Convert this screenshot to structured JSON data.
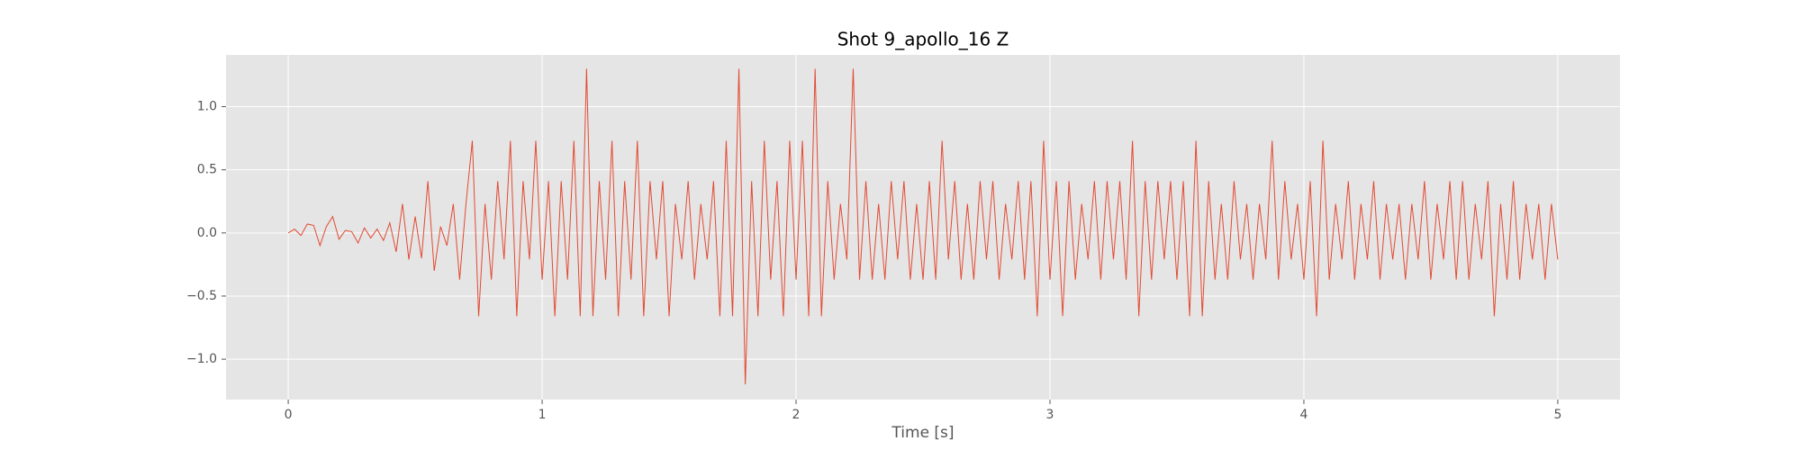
{
  "chart_data": {
    "type": "line",
    "title": "Shot 9_apollo_16 Z",
    "xlabel": "Time [s]",
    "x": [
      0,
      0.025,
      0.05,
      0.075,
      0.1,
      0.125,
      0.15,
      0.175,
      0.2,
      0.225,
      0.25,
      0.275,
      0.3,
      0.325,
      0.35,
      0.375,
      0.4,
      0.425,
      0.45,
      0.475,
      0.5,
      0.525,
      0.55,
      0.575,
      0.6,
      0.625,
      0.65,
      0.675,
      0.7,
      0.725,
      0.75,
      0.775,
      0.8,
      0.825,
      0.85,
      0.875,
      0.9,
      0.925,
      0.95,
      0.975,
      1,
      1.025,
      1.05,
      1.075,
      1.1,
      1.125,
      1.15,
      1.175,
      1.2,
      1.225,
      1.25,
      1.275,
      1.3,
      1.325,
      1.35,
      1.375,
      1.4,
      1.425,
      1.45,
      1.475,
      1.5,
      1.525,
      1.55,
      1.575,
      1.6,
      1.625,
      1.65,
      1.675,
      1.7,
      1.725,
      1.75,
      1.775,
      1.8,
      1.825,
      1.85,
      1.875,
      1.9,
      1.925,
      1.95,
      1.975,
      2,
      2.025,
      2.05,
      2.075,
      2.1,
      2.125,
      2.15,
      2.175,
      2.2,
      2.225,
      2.25,
      2.275,
      2.3,
      2.325,
      2.35,
      2.375,
      2.4,
      2.425,
      2.45,
      2.475,
      2.5,
      2.525,
      2.55,
      2.575,
      2.6,
      2.625,
      2.65,
      2.675,
      2.7,
      2.725,
      2.75,
      2.775,
      2.8,
      2.825,
      2.85,
      2.875,
      2.9,
      2.925,
      2.95,
      2.975,
      3,
      3.025,
      3.05,
      3.075,
      3.1,
      3.125,
      3.15,
      3.175,
      3.2,
      3.225,
      3.25,
      3.275,
      3.3,
      3.325,
      3.35,
      3.375,
      3.4,
      3.425,
      3.45,
      3.475,
      3.5,
      3.525,
      3.55,
      3.575,
      3.6,
      3.625,
      3.65,
      3.675,
      3.7,
      3.725,
      3.75,
      3.775,
      3.8,
      3.825,
      3.85,
      3.875,
      3.9,
      3.925,
      3.95,
      3.975,
      4,
      4.025,
      4.05,
      4.075,
      4.1,
      4.125,
      4.15,
      4.175,
      4.2,
      4.225,
      4.25,
      4.275,
      4.3,
      4.325,
      4.35,
      4.375,
      4.4,
      4.425,
      4.45,
      4.475,
      4.5,
      4.525,
      4.55,
      4.575,
      4.6,
      4.625,
      4.65,
      4.675,
      4.7,
      4.725,
      4.75,
      4.775,
      4.8,
      4.825,
      4.85,
      4.875,
      4.9,
      4.925,
      4.95,
      4.975,
      5
    ],
    "series": [
      {
        "color": "#E24A33",
        "values": [
          0,
          0.03,
          -0.02,
          0.07,
          0.06,
          -0.1,
          0.05,
          0.13,
          -0.05,
          0.02,
          0.01,
          -0.08,
          0.04,
          -0.04,
          0.03,
          -0.06,
          0.08,
          -0.15,
          0.23,
          -0.21,
          0.13,
          -0.2,
          0.41,
          -0.3,
          0.05,
          -0.1,
          0.23,
          -0.37,
          0.23,
          0.73,
          -0.66,
          0.23,
          -0.37,
          0.41,
          -0.21,
          0.73,
          -0.66,
          0.41,
          -0.21,
          0.73,
          -0.37,
          0.41,
          -0.66,
          0.41,
          -0.37,
          0.73,
          -0.66,
          1.3,
          -0.66,
          0.41,
          -0.37,
          0.73,
          -0.66,
          0.41,
          -0.37,
          0.73,
          -0.66,
          0.41,
          -0.21,
          0.41,
          -0.66,
          0.23,
          -0.21,
          0.41,
          -0.37,
          0.23,
          -0.21,
          0.41,
          -0.66,
          0.73,
          -0.66,
          1.3,
          -1.2,
          0.41,
          -0.66,
          0.73,
          -0.37,
          0.41,
          -0.66,
          0.73,
          -0.37,
          0.73,
          -0.66,
          1.3,
          -0.66,
          0.41,
          -0.37,
          0.23,
          -0.21,
          1.3,
          -0.37,
          0.41,
          -0.37,
          0.23,
          -0.37,
          0.41,
          -0.21,
          0.41,
          -0.37,
          0.23,
          -0.37,
          0.41,
          -0.37,
          0.73,
          -0.21,
          0.41,
          -0.37,
          0.23,
          -0.37,
          0.41,
          -0.21,
          0.41,
          -0.37,
          0.23,
          -0.21,
          0.41,
          -0.37,
          0.41,
          -0.66,
          0.73,
          -0.37,
          0.41,
          -0.66,
          0.41,
          -0.37,
          0.23,
          -0.21,
          0.41,
          -0.37,
          0.41,
          -0.21,
          0.41,
          -0.37,
          0.73,
          -0.66,
          0.41,
          -0.37,
          0.41,
          -0.21,
          0.41,
          -0.37,
          0.41,
          -0.66,
          0.73,
          -0.66,
          0.41,
          -0.37,
          0.23,
          -0.37,
          0.41,
          -0.21,
          0.23,
          -0.37,
          0.23,
          -0.21,
          0.73,
          -0.37,
          0.41,
          -0.21,
          0.23,
          -0.37,
          0.41,
          -0.66,
          0.73,
          -0.37,
          0.23,
          -0.21,
          0.41,
          -0.37,
          0.23,
          -0.21,
          0.41,
          -0.37,
          0.23,
          -0.21,
          0.23,
          -0.37,
          0.23,
          -0.21,
          0.41,
          -0.37,
          0.23,
          -0.21,
          0.41,
          -0.37,
          0.41,
          -0.37,
          0.23,
          -0.21,
          0.41,
          -0.66,
          0.23,
          -0.37,
          0.41,
          -0.37,
          0.23,
          -0.21,
          0.23,
          -0.37,
          0.23,
          -0.21
        ]
      }
    ],
    "xlim": [
      -0.245,
      5.245
    ],
    "xticks": [
      0,
      1,
      2,
      3,
      4,
      5
    ],
    "ylim": [
      -1.32,
      1.41
    ],
    "yticks": [
      {
        "value": -1,
        "label": "−1.0"
      },
      {
        "value": -0.5,
        "label": "−0.5"
      },
      {
        "value": 0,
        "label": "0.0"
      },
      {
        "value": 0.5,
        "label": "0.5"
      },
      {
        "value": 1,
        "label": "1.0"
      }
    ],
    "grid": true
  }
}
